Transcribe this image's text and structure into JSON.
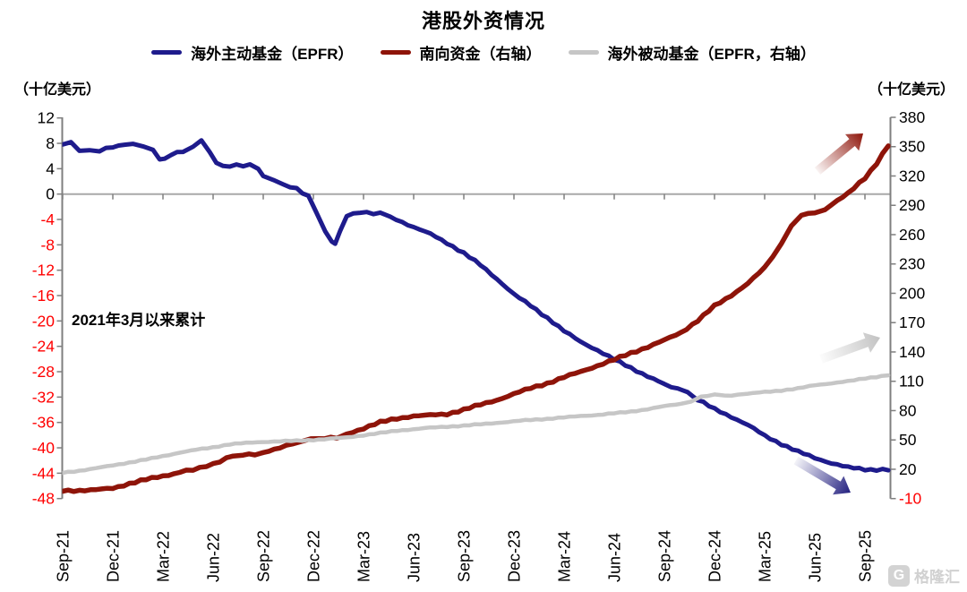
{
  "title": "港股外资情况",
  "units": {
    "left": "（十亿美元）",
    "right": "（十亿美元）"
  },
  "annotation": "2021年3月以来累计",
  "watermark": {
    "icon_letter": "G",
    "text": "格隆汇"
  },
  "legend": [
    {
      "label": "海外主动基金（EPFR）",
      "color": "#1E1B8C"
    },
    {
      "label": "南向资金（右轴）",
      "color": "#8E1409"
    },
    {
      "label": "海外被动基金（EPFR，右轴）",
      "color": "#C6C6C6"
    }
  ],
  "colors": {
    "axis": "#7f7f7f",
    "zero_line": "#a8a8a8",
    "tick_text": "#000000",
    "negative_tick_text": "#FF0000",
    "background": "#ffffff"
  },
  "chart_data": {
    "type": "line",
    "title": "港股外资情况",
    "x_unit": "months since Sep-2021 (index 0 = Sep-21, 3 = Dec-21, ... 48 = Sep-25)",
    "x_tick_labels": [
      "Sep-21",
      "Dec-21",
      "Mar-22",
      "Jun-22",
      "Sep-22",
      "Dec-22",
      "Mar-23",
      "Jun-23",
      "Sep-23",
      "Dec-23",
      "Mar-24",
      "Jun-24",
      "Sep-24",
      "Dec-24",
      "Mar-25",
      "Jun-25",
      "Sep-25"
    ],
    "x_tick_month_index": [
      0,
      3,
      6,
      9,
      12,
      15,
      18,
      21,
      24,
      27,
      30,
      33,
      36,
      39,
      42,
      45,
      48
    ],
    "left_axis": {
      "label": "（十亿美元）",
      "range": [
        -48,
        12
      ],
      "ticks": [
        12,
        8,
        4,
        0,
        -4,
        -8,
        -12,
        -16,
        -20,
        -24,
        -28,
        -32,
        -36,
        -40,
        -44,
        -48
      ]
    },
    "right_axis": {
      "label": "（十亿美元）",
      "range": [
        -10,
        380
      ],
      "ticks": [
        380,
        350,
        320,
        290,
        260,
        230,
        200,
        170,
        140,
        110,
        80,
        50,
        20,
        -10
      ]
    },
    "grid": "zero-line-only",
    "legend_position": "top",
    "series": [
      {
        "name": "海外主动基金（EPFR）",
        "axis": "left",
        "color": "#1E1B8C",
        "width": 5,
        "points": [
          [
            0,
            7.9
          ],
          [
            0.5,
            8.1
          ],
          [
            1,
            6.8
          ],
          [
            1.6,
            7.0
          ],
          [
            2.2,
            6.9
          ],
          [
            3,
            7.4
          ],
          [
            3.7,
            7.9
          ],
          [
            4.2,
            8.0
          ],
          [
            4.8,
            7.5
          ],
          [
            5.4,
            6.9
          ],
          [
            5.8,
            5.6
          ],
          [
            6.1,
            5.5
          ],
          [
            6.5,
            6.2
          ],
          [
            7.2,
            6.8
          ],
          [
            7.8,
            7.6
          ],
          [
            8.3,
            8.3
          ],
          [
            8.8,
            6.6
          ],
          [
            9.2,
            4.9
          ],
          [
            9.6,
            4.4
          ],
          [
            10.4,
            4.5
          ],
          [
            11.2,
            4.6
          ],
          [
            11.7,
            4.0
          ],
          [
            12,
            2.9
          ],
          [
            12.6,
            2.2
          ],
          [
            13.2,
            1.5
          ],
          [
            14,
            0.8
          ],
          [
            14.7,
            -0.3
          ],
          [
            15.2,
            -3.0
          ],
          [
            15.7,
            -5.8
          ],
          [
            16.1,
            -7.6
          ],
          [
            16.3,
            -7.9
          ],
          [
            16.6,
            -5.8
          ],
          [
            17,
            -3.5
          ],
          [
            17.4,
            -3.0
          ],
          [
            18.2,
            -2.9
          ],
          [
            19,
            -3.1
          ],
          [
            19.6,
            -3.7
          ],
          [
            20.3,
            -4.4
          ],
          [
            21,
            -5.2
          ],
          [
            22,
            -6.3
          ],
          [
            23,
            -7.7
          ],
          [
            24,
            -9.3
          ],
          [
            25,
            -11.2
          ],
          [
            26,
            -13.4
          ],
          [
            27,
            -15.8
          ],
          [
            28,
            -17.6
          ],
          [
            29,
            -19.5
          ],
          [
            30,
            -21.6
          ],
          [
            31,
            -23.3
          ],
          [
            32,
            -24.6
          ],
          [
            33,
            -26.1
          ],
          [
            34,
            -27.4
          ],
          [
            35,
            -28.7
          ],
          [
            36,
            -30.0
          ],
          [
            36.8,
            -30.7
          ],
          [
            37.4,
            -31.2
          ],
          [
            38,
            -32.4
          ],
          [
            39,
            -33.9
          ],
          [
            40,
            -35.1
          ],
          [
            41,
            -36.4
          ],
          [
            42,
            -38.1
          ],
          [
            43,
            -39.4
          ],
          [
            44,
            -40.6
          ],
          [
            45,
            -41.6
          ],
          [
            46,
            -42.4
          ],
          [
            47,
            -43.1
          ],
          [
            48,
            -43.4
          ],
          [
            49.4,
            -43.5
          ]
        ]
      },
      {
        "name": "南向资金（右轴）",
        "axis": "right",
        "color": "#8E1409",
        "width": 5.5,
        "points": [
          [
            0,
            -2.0
          ],
          [
            1,
            -1.6
          ],
          [
            2,
            -1.1
          ],
          [
            3,
            0.6
          ],
          [
            4,
            5.5
          ],
          [
            5,
            9.5
          ],
          [
            6,
            13
          ],
          [
            7,
            17
          ],
          [
            7.8,
            19.8
          ],
          [
            8.6,
            23
          ],
          [
            9.4,
            28
          ],
          [
            10.2,
            34
          ],
          [
            10.8,
            35.5
          ],
          [
            11.5,
            35.2
          ],
          [
            12,
            37.5
          ],
          [
            13,
            42
          ],
          [
            13.8,
            46.5
          ],
          [
            14.4,
            50
          ],
          [
            15.3,
            51.3
          ],
          [
            16.4,
            52.2
          ],
          [
            17,
            56
          ],
          [
            18,
            62
          ],
          [
            19,
            68
          ],
          [
            20,
            72
          ],
          [
            21,
            74.5
          ],
          [
            22,
            75.3
          ],
          [
            23,
            76.5
          ],
          [
            24,
            81
          ],
          [
            25,
            86
          ],
          [
            26,
            91
          ],
          [
            27,
            97
          ],
          [
            28,
            103
          ],
          [
            29,
            108
          ],
          [
            30,
            114
          ],
          [
            31,
            120
          ],
          [
            32,
            126
          ],
          [
            33,
            132
          ],
          [
            34,
            139
          ],
          [
            35,
            145
          ],
          [
            36,
            152
          ],
          [
            37,
            160
          ],
          [
            38,
            172
          ],
          [
            39,
            187
          ],
          [
            40,
            198
          ],
          [
            41,
            210
          ],
          [
            42,
            226
          ],
          [
            42.5,
            237
          ],
          [
            43,
            252
          ],
          [
            43.6,
            270
          ],
          [
            44.2,
            280
          ],
          [
            45,
            282.5
          ],
          [
            45.6,
            285
          ],
          [
            46,
            291
          ],
          [
            47,
            302
          ],
          [
            48,
            318
          ],
          [
            48.7,
            333
          ],
          [
            49.4,
            351
          ]
        ]
      },
      {
        "name": "海外被动基金（EPFR，右轴）",
        "axis": "right",
        "color": "#C6C6C6",
        "width": 4.5,
        "points": [
          [
            0,
            16.5
          ],
          [
            1,
            18.5
          ],
          [
            2,
            21
          ],
          [
            3,
            24
          ],
          [
            4,
            27
          ],
          [
            5,
            30
          ],
          [
            6,
            33.5
          ],
          [
            7,
            37
          ],
          [
            8,
            40
          ],
          [
            9,
            42.5
          ],
          [
            10,
            45.5
          ],
          [
            11,
            47
          ],
          [
            12,
            48
          ],
          [
            13,
            48.5
          ],
          [
            14,
            49.2
          ],
          [
            15,
            50
          ],
          [
            16,
            51.2
          ],
          [
            17,
            52.6
          ],
          [
            18,
            54.8
          ],
          [
            19,
            57
          ],
          [
            20,
            59.5
          ],
          [
            21,
            61
          ],
          [
            22,
            62.5
          ],
          [
            23,
            63.6
          ],
          [
            24,
            64.6
          ],
          [
            25,
            66
          ],
          [
            26,
            67.5
          ],
          [
            27,
            69
          ],
          [
            28,
            70.5
          ],
          [
            29,
            71.6
          ],
          [
            30,
            73
          ],
          [
            31,
            74.5
          ],
          [
            32,
            75.6
          ],
          [
            33,
            77.2
          ],
          [
            34,
            79
          ],
          [
            35,
            81.5
          ],
          [
            36,
            84.5
          ],
          [
            37,
            87
          ],
          [
            37.6,
            89
          ],
          [
            38.2,
            94.5
          ],
          [
            39,
            96
          ],
          [
            39.6,
            95.2
          ],
          [
            40.4,
            96
          ],
          [
            41,
            97.2
          ],
          [
            42,
            99
          ],
          [
            43,
            100.6
          ],
          [
            44,
            102.6
          ],
          [
            45,
            106
          ],
          [
            46,
            108
          ],
          [
            47,
            110
          ],
          [
            48,
            113
          ],
          [
            49,
            115.3
          ],
          [
            49.4,
            116.2
          ]
        ]
      }
    ],
    "trend_arrows": [
      {
        "name": "southbound-trend-arrow",
        "direction": "up-right",
        "color": "#8E1409",
        "tail": [
          913,
          191
        ],
        "head": [
          964,
          149
        ]
      },
      {
        "name": "passive-trend-arrow",
        "direction": "up-right",
        "color": "#c2c2c2",
        "tail": [
          917,
          401
        ],
        "head": [
          983,
          377
        ]
      },
      {
        "name": "active-trend-arrow",
        "direction": "down-right",
        "color": "#23207F",
        "tail": [
          889,
          514
        ],
        "head": [
          950,
          550
        ]
      }
    ]
  }
}
